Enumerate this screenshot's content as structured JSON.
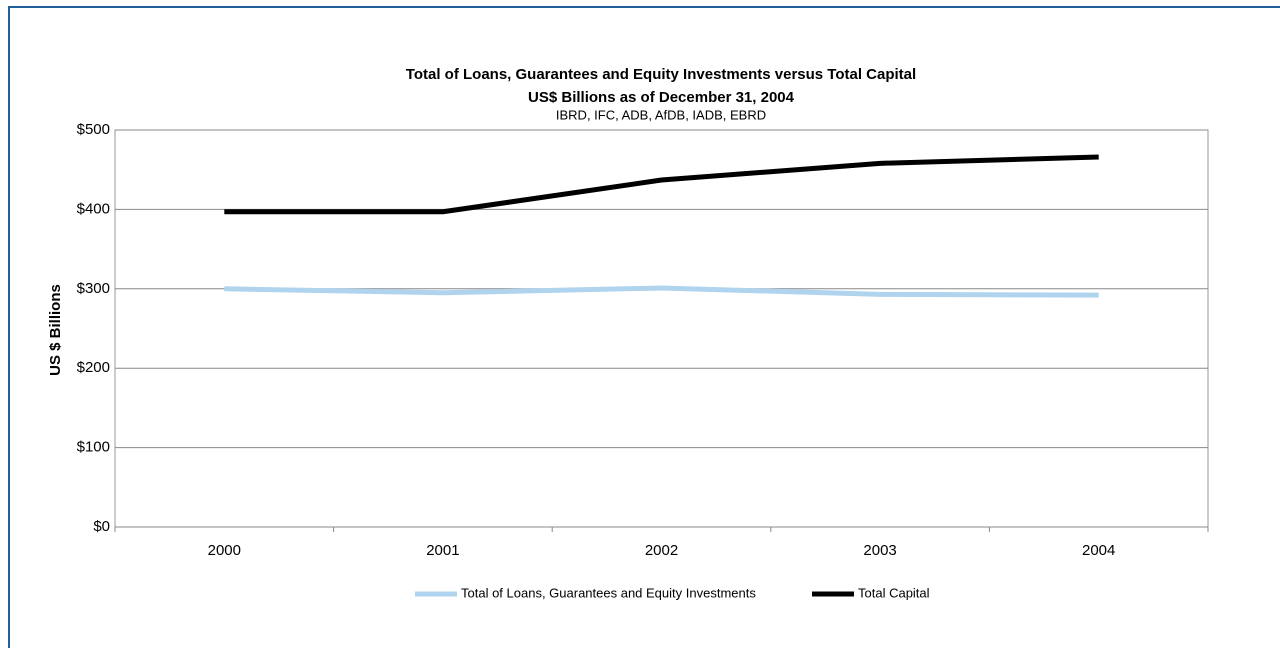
{
  "chart_data": {
    "type": "line",
    "title": [
      "Total of Loans, Guarantees and Equity Investments versus Total Capital",
      "US$ Billions as of December 31, 2004"
    ],
    "subtitle": "IBRD, IFC, ADB, AfDB, IADB, EBRD",
    "y_label": "US $ Billions",
    "categories": [
      "2000",
      "2001",
      "2002",
      "2003",
      "2004"
    ],
    "series": [
      {
        "name": "Total of Loans, Guarantees and Equity Investments",
        "color": "#b0d4ee",
        "values": [
          300,
          295,
          301,
          293,
          292
        ]
      },
      {
        "name": "Total Capital",
        "color": "#000000",
        "values": [
          397,
          397,
          437,
          458,
          466
        ]
      }
    ],
    "ylim": [
      0,
      500
    ],
    "yticks": [
      {
        "value": 0,
        "label": "$0"
      },
      {
        "value": 100,
        "label": "$100"
      },
      {
        "value": 200,
        "label": "$200"
      },
      {
        "value": 300,
        "label": "$300"
      },
      {
        "value": 400,
        "label": "$400"
      },
      {
        "value": 500,
        "label": "$500"
      }
    ],
    "grid": true,
    "legend": "bottom"
  }
}
